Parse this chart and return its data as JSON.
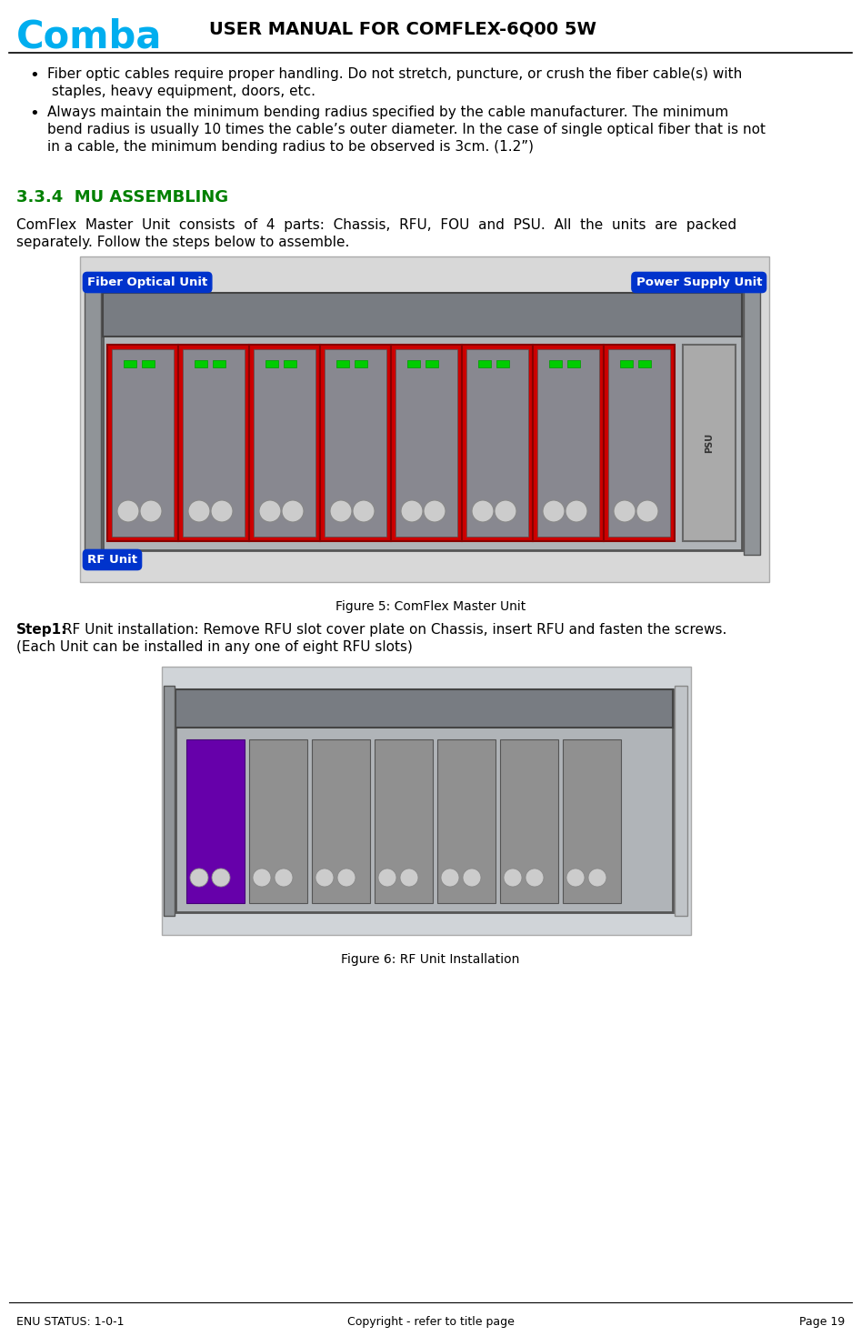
{
  "title": "USER MANUAL FOR COMFLEX-6Q00 5W",
  "title_color": "#000000",
  "title_fontsize": 14,
  "comba_color": "#00AEEF",
  "header_line_color": "#000000",
  "section_number": "3.3.4",
  "section_title": "MU ASSEMBLING",
  "section_color": "#008000",
  "section_fontsize": 13,
  "bullet1_line1": "Fiber optic cables require proper handling. Do not stretch, puncture, or crush the fiber cable(s) with",
  "bullet1_line2": " staples, heavy equipment, doors, etc.",
  "bullet2_line1": "Always maintain the minimum bending radius specified by the cable manufacturer. The minimum",
  "bullet2_line2": "bend radius is usually 10 times the cable’s outer diameter. In the case of single optical fiber that is not",
  "bullet2_line3": "in a cable, the minimum bending radius to be observed is 3cm. (1.2”)",
  "body_fontsize": 11,
  "body_color": "#000000",
  "fig5_caption": "Figure 5: ComFlex Master Unit",
  "fig6_caption": "Figure 6: RF Unit Installation",
  "step1_bold": "Step1:",
  "step1_rest": " RF Unit installation: Remove RFU slot cover plate on Chassis, insert RFU and fasten the screws.",
  "step1_line2": "(Each Unit can be installed in any one of eight RFU slots)",
  "footer_left": "ENU STATUS: 1-0-1",
  "footer_center": "Copyright - refer to title page",
  "footer_right": "Page 19",
  "footer_fontsize": 9,
  "bg_color": "#ffffff",
  "fig5_label_fou": "Fiber Optical Unit",
  "fig5_label_psu": "Power Supply Unit",
  "fig5_label_rfu": "RF Unit",
  "label_bg_color": "#0000CC",
  "label_text_color": "#ffffff"
}
